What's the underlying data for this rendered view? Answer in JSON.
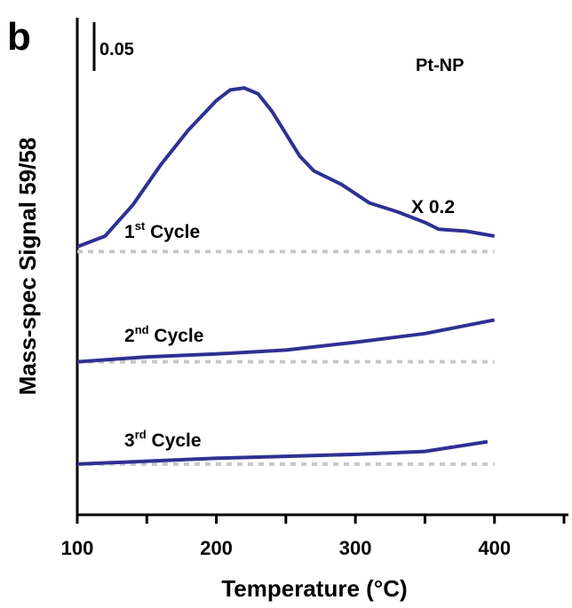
{
  "chart_data": {
    "type": "line",
    "panel_label": "b",
    "annotation": "Pt-NP",
    "scale_annotation": "X 0.2",
    "x_label": "Temperature (°C)",
    "y_label": "Mass-spec Signal 59/58",
    "scale_bar": {
      "value": 0.05,
      "label": "0.05"
    },
    "xlim": [
      100,
      450
    ],
    "xticks": [
      100,
      200,
      300,
      400
    ],
    "minor_xticks": [
      150,
      250,
      350,
      450
    ],
    "ylim": [
      0,
      0.51
    ],
    "series": [
      {
        "name": "1st Cycle",
        "color": "#2e3192",
        "baseline": 0.27,
        "x": [
          100,
          120,
          140,
          160,
          180,
          200,
          210,
          220,
          230,
          240,
          260,
          270,
          290,
          310,
          330,
          350,
          360,
          380,
          400
        ],
        "values": [
          0.275,
          0.286,
          0.318,
          0.359,
          0.395,
          0.425,
          0.436,
          0.438,
          0.432,
          0.414,
          0.368,
          0.353,
          0.339,
          0.32,
          0.311,
          0.3,
          0.293,
          0.291,
          0.286
        ]
      },
      {
        "name": "2nd Cycle",
        "color": "#2e3192",
        "baseline": 0.157,
        "x": [
          100,
          150,
          200,
          250,
          300,
          350,
          400
        ],
        "values": [
          0.157,
          0.162,
          0.165,
          0.169,
          0.177,
          0.186,
          0.2
        ]
      },
      {
        "name": "3rd Cycle",
        "color": "#2e3192",
        "baseline": 0.052,
        "x": [
          100,
          150,
          200,
          250,
          300,
          350,
          395
        ],
        "values": [
          0.052,
          0.055,
          0.058,
          0.06,
          0.062,
          0.065,
          0.075
        ]
      }
    ]
  }
}
